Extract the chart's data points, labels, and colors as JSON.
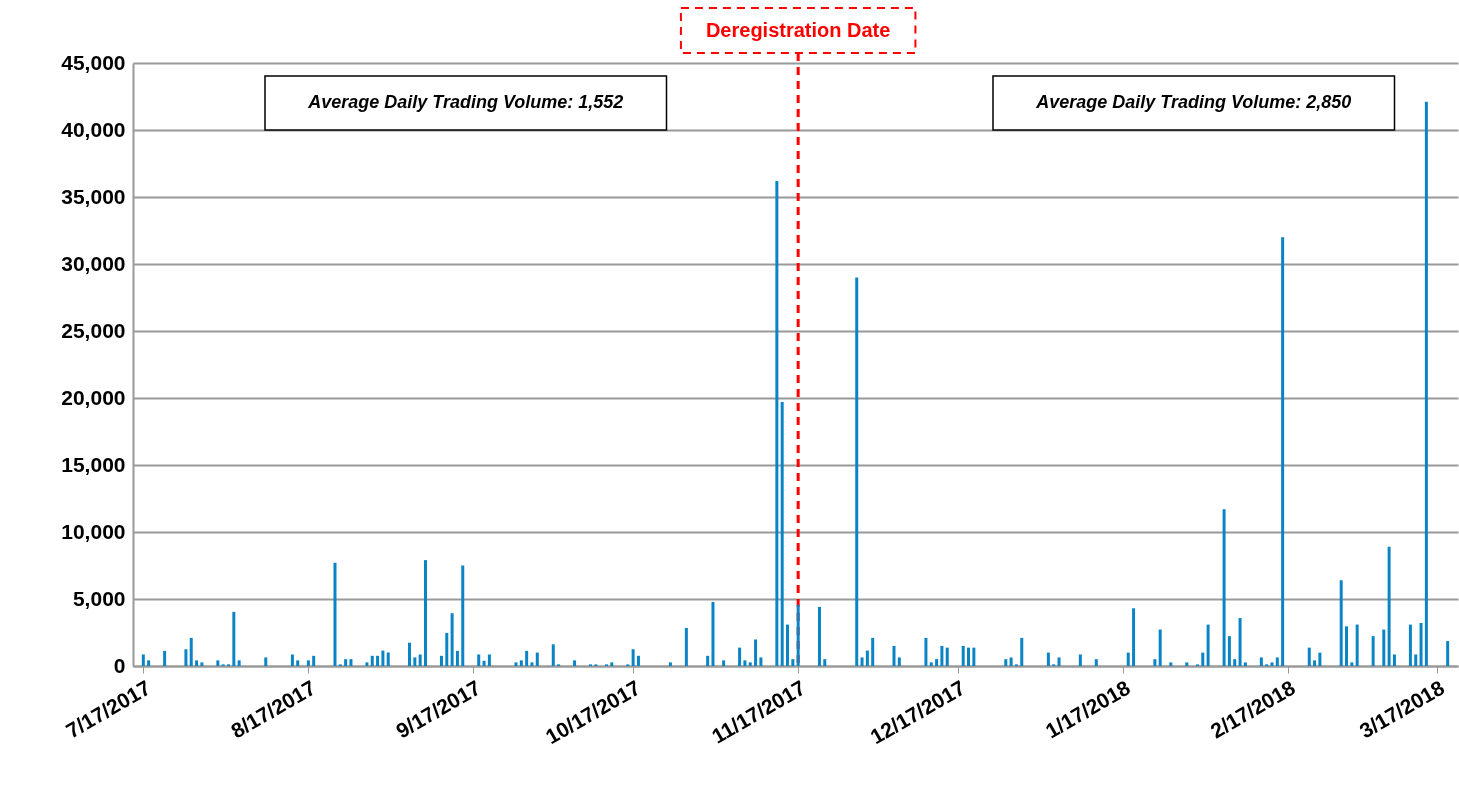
{
  "chart_data": {
    "type": "bar",
    "color": "#0b84c6",
    "x": [
      "2017-07-17",
      "2017-07-18",
      "2017-07-21",
      "2017-07-25",
      "2017-07-26",
      "2017-07-27",
      "2017-07-28",
      "2017-07-31",
      "2017-08-01",
      "2017-08-02",
      "2017-08-03",
      "2017-08-04",
      "2017-08-09",
      "2017-08-14",
      "2017-08-15",
      "2017-08-17",
      "2017-08-18",
      "2017-08-22",
      "2017-08-23",
      "2017-08-24",
      "2017-08-25",
      "2017-08-28",
      "2017-08-29",
      "2017-08-30",
      "2017-08-31",
      "2017-09-01",
      "2017-09-05",
      "2017-09-06",
      "2017-09-07",
      "2017-09-08",
      "2017-09-11",
      "2017-09-12",
      "2017-09-13",
      "2017-09-14",
      "2017-09-15",
      "2017-09-18",
      "2017-09-19",
      "2017-09-20",
      "2017-09-25",
      "2017-09-26",
      "2017-09-27",
      "2017-09-28",
      "2017-09-29",
      "2017-10-02",
      "2017-10-03",
      "2017-10-06",
      "2017-10-09",
      "2017-10-10",
      "2017-10-12",
      "2017-10-13",
      "2017-10-16",
      "2017-10-17",
      "2017-10-18",
      "2017-10-24",
      "2017-10-27",
      "2017-10-31",
      "2017-11-01",
      "2017-11-03",
      "2017-11-06",
      "2017-11-07",
      "2017-11-08",
      "2017-11-09",
      "2017-11-10",
      "2017-11-13",
      "2017-11-14",
      "2017-11-15",
      "2017-11-16",
      "2017-11-17",
      "2017-11-21",
      "2017-11-22",
      "2017-11-28",
      "2017-11-29",
      "2017-11-30",
      "2017-12-01",
      "2017-12-05",
      "2017-12-06",
      "2017-12-11",
      "2017-12-12",
      "2017-12-13",
      "2017-12-14",
      "2017-12-15",
      "2017-12-18",
      "2017-12-19",
      "2017-12-20",
      "2017-12-26",
      "2017-12-27",
      "2017-12-28",
      "2017-12-29",
      "2018-01-03",
      "2018-01-04",
      "2018-01-05",
      "2018-01-09",
      "2018-01-12",
      "2018-01-18",
      "2018-01-19",
      "2018-01-23",
      "2018-01-24",
      "2018-01-26",
      "2018-01-29",
      "2018-01-31",
      "2018-02-01",
      "2018-02-02",
      "2018-02-05",
      "2018-02-06",
      "2018-02-07",
      "2018-02-08",
      "2018-02-09",
      "2018-02-12",
      "2018-02-13",
      "2018-02-14",
      "2018-02-15",
      "2018-02-16",
      "2018-02-21",
      "2018-02-22",
      "2018-02-23",
      "2018-02-27",
      "2018-02-28",
      "2018-03-01",
      "2018-03-02",
      "2018-03-05",
      "2018-03-07",
      "2018-03-08",
      "2018-03-09",
      "2018-03-12",
      "2018-03-13",
      "2018-03-14",
      "2018-03-15",
      "2018-03-19"
    ],
    "values": [
      860,
      420,
      1130,
      1250,
      2100,
      420,
      270,
      420,
      120,
      120,
      4040,
      420,
      640,
      860,
      420,
      420,
      760,
      7700,
      120,
      510,
      510,
      270,
      760,
      760,
      1150,
      1000,
      1740,
      640,
      860,
      7900,
      760,
      2470,
      3940,
      1130,
      7500,
      860,
      390,
      860,
      270,
      420,
      1130,
      270,
      1000,
      1620,
      120,
      420,
      120,
      120,
      120,
      270,
      120,
      1250,
      760,
      270,
      2840,
      760,
      4780,
      420,
      1370,
      420,
      270,
      1980,
      640,
      36200,
      19700,
      3090,
      510,
      4560,
      4410,
      510,
      29000,
      640,
      1150,
      2100,
      1500,
      640,
      2100,
      270,
      510,
      1500,
      1370,
      1500,
      1370,
      1370,
      510,
      640,
      120,
      2100,
      1000,
      120,
      640,
      860,
      510,
      1000,
      4310,
      510,
      2720,
      270,
      270,
      120,
      1000,
      3090,
      11700,
      2230,
      510,
      3580,
      270,
      640,
      120,
      270,
      640,
      32000,
      1370,
      420,
      1000,
      6400,
      2960,
      270,
      3090,
      2230,
      2720,
      8900,
      860,
      3090,
      860,
      3210,
      42100,
      1860
    ],
    "xlim": [
      "2017-07-16",
      "2018-03-20"
    ],
    "xticks": [
      {
        "value": "2017-07-17",
        "label": "7/17/2017"
      },
      {
        "value": "2017-08-17",
        "label": "8/17/2017"
      },
      {
        "value": "2017-09-17",
        "label": "9/17/2017"
      },
      {
        "value": "2017-10-17",
        "label": "10/17/2017"
      },
      {
        "value": "2017-11-17",
        "label": "11/17/2017"
      },
      {
        "value": "2017-12-17",
        "label": "12/17/2017"
      },
      {
        "value": "2018-01-17",
        "label": "1/17/2018"
      },
      {
        "value": "2018-02-17",
        "label": "2/17/2018"
      },
      {
        "value": "2018-03-17",
        "label": "3/17/2018"
      }
    ],
    "ylim": [
      0,
      45000
    ],
    "yticks": [
      {
        "value": 0,
        "label": "0"
      },
      {
        "value": 5000,
        "label": "5,000"
      },
      {
        "value": 10000,
        "label": "10,000"
      },
      {
        "value": 15000,
        "label": "15,000"
      },
      {
        "value": 20000,
        "label": "20,000"
      },
      {
        "value": 25000,
        "label": "25,000"
      },
      {
        "value": 30000,
        "label": "30,000"
      },
      {
        "value": 35000,
        "label": "35,000"
      },
      {
        "value": 40000,
        "label": "40,000"
      },
      {
        "value": 45000,
        "label": "45,000"
      }
    ],
    "grid": "y",
    "ref_lines": [
      {
        "axis": "x",
        "value": "2017-11-17",
        "label": "Deregistration Date",
        "color": "#ff0000",
        "line_style": "dashed"
      }
    ],
    "annotations": [
      "Average Daily Trading Volume: 1,552",
      "Average Daily Trading Volume: 2,850"
    ]
  }
}
